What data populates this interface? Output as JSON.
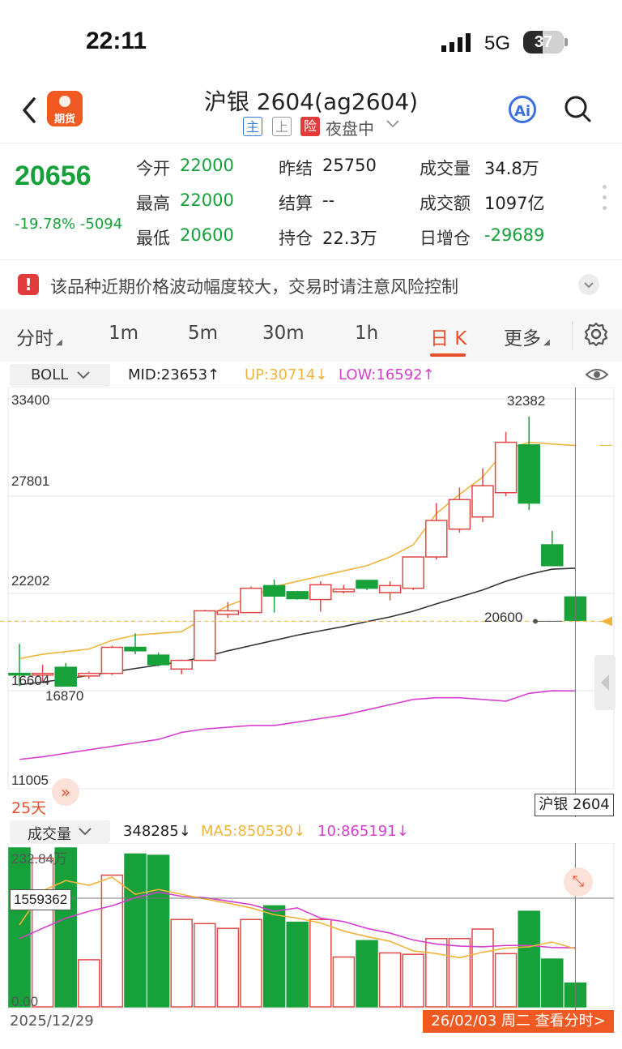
{
  "status_bar": {
    "time": "22:11",
    "network": "5G",
    "battery": "37"
  },
  "header": {
    "back_icon": "chevron-left-icon",
    "logo_label": "期货",
    "title": "沪银 2604(ag2604)",
    "tags": {
      "main": "主",
      "up": "上",
      "risk": "险"
    },
    "session": "夜盘中",
    "ai_label": "Ai"
  },
  "quote": {
    "price": "20656",
    "change_pct": "-19.78%",
    "change_abs": "-5094",
    "fields": [
      {
        "label": "今开",
        "value": "22000",
        "color": "#17a13a"
      },
      {
        "label": "最高",
        "value": "22000",
        "color": "#17a13a"
      },
      {
        "label": "最低",
        "value": "20600",
        "color": "#17a13a"
      },
      {
        "label": "昨结",
        "value": "25750",
        "color": "#222222"
      },
      {
        "label": "结算",
        "value": "--",
        "color": "#222222"
      },
      {
        "label": "持仓",
        "value": "22.3万",
        "color": "#222222"
      },
      {
        "label": "成交量",
        "value": "34.8万",
        "color": "#222222"
      },
      {
        "label": "成交额",
        "value": "1097亿",
        "color": "#222222"
      },
      {
        "label": "日增仓",
        "value": "-29689",
        "color": "#17a13a"
      }
    ]
  },
  "warning": {
    "icon": "!",
    "text": "该品种近期价格波动幅度较大，交易时请注意风险控制"
  },
  "tabs": {
    "fenshi": "分时",
    "m1": "1m",
    "m5": "5m",
    "m30": "30m",
    "h1": "1h",
    "day": "日 K",
    "more": "更多"
  },
  "indicator": {
    "name": "BOLL",
    "mid": "MID:23653↑",
    "up": "UP:30714↓",
    "low": "LOW:16592↑"
  },
  "price_axis": {
    "y1": "33400",
    "y2": "27801",
    "y3": "22202",
    "y4": "16604",
    "y5": "11005"
  },
  "annotations": {
    "high": "32382",
    "low": "16870",
    "last": "20600"
  },
  "period": "25天",
  "symbol_tag": "沪银 2604",
  "volume": {
    "name": "成交量",
    "value": "348285↓",
    "ma5": "MA5:850530↓",
    "ma10": "10:865191↓",
    "axis_top": "232.84万",
    "axis_bottom": "0.00",
    "crosshair_label": "1559362"
  },
  "dates": {
    "start": "2025/12/29",
    "selected": "26/02/03 周二 查看分时>"
  },
  "colors": {
    "up": "#e04848",
    "down": "#17a13a",
    "mid": "#333333",
    "upper": "#f0b43c",
    "lower": "#d63fd0",
    "accent": "#e8502b"
  },
  "chart_data": {
    "type": "candlestick",
    "candles": [
      {
        "o": 17600,
        "c": 17550,
        "h": 19300,
        "l": 16870
      },
      {
        "o": 17500,
        "c": 17600,
        "h": 18100,
        "l": 17100
      },
      {
        "o": 17950,
        "c": 16870,
        "h": 18200,
        "l": 16870
      },
      {
        "o": 17450,
        "c": 17600,
        "h": 17700,
        "l": 17300
      },
      {
        "o": 17600,
        "c": 19100,
        "h": 19200,
        "l": 17500
      },
      {
        "o": 19100,
        "c": 18900,
        "h": 19900,
        "l": 18700
      },
      {
        "o": 18650,
        "c": 18100,
        "h": 18800,
        "l": 18000
      },
      {
        "o": 17850,
        "c": 18350,
        "h": 18400,
        "l": 17550
      },
      {
        "o": 18350,
        "c": 21200,
        "h": 21250,
        "l": 18350
      },
      {
        "o": 21000,
        "c": 21200,
        "h": 21700,
        "l": 20800
      },
      {
        "o": 21100,
        "c": 22500,
        "h": 22600,
        "l": 21100
      },
      {
        "o": 22650,
        "c": 22050,
        "h": 23000,
        "l": 21100
      },
      {
        "o": 22300,
        "c": 21900,
        "h": 22350,
        "l": 21850
      },
      {
        "o": 21850,
        "c": 22700,
        "h": 22900,
        "l": 21150
      },
      {
        "o": 22300,
        "c": 22450,
        "h": 22700,
        "l": 22200
      },
      {
        "o": 22950,
        "c": 22500,
        "h": 22950,
        "l": 22400
      },
      {
        "o": 22250,
        "c": 22650,
        "h": 22900,
        "l": 21800
      },
      {
        "o": 22500,
        "c": 24300,
        "h": 24300,
        "l": 22400
      },
      {
        "o": 24300,
        "c": 26400,
        "h": 27400,
        "l": 24150
      },
      {
        "o": 25900,
        "c": 27600,
        "h": 28300,
        "l": 25700
      },
      {
        "o": 26600,
        "c": 28400,
        "h": 29400,
        "l": 26300
      },
      {
        "o": 28000,
        "c": 30900,
        "h": 31500,
        "l": 27800
      },
      {
        "o": 30750,
        "c": 27400,
        "h": 32382,
        "l": 27000
      },
      {
        "o": 25000,
        "c": 23800,
        "h": 25800,
        "l": 23800
      },
      {
        "o": 22000,
        "c": 20656,
        "h": 22000,
        "l": 20600
      }
    ],
    "boll_mid": [
      16950,
      17100,
      17280,
      17480,
      17680,
      17880,
      18080,
      18280,
      18550,
      18900,
      19200,
      19500,
      19800,
      20050,
      20300,
      20580,
      20850,
      21180,
      21600,
      22000,
      22400,
      22900,
      23300,
      23600,
      23653
    ],
    "boll_up": [
      18450,
      18700,
      18850,
      19000,
      19500,
      19800,
      19900,
      20000,
      20800,
      21500,
      22000,
      22600,
      22900,
      23200,
      23500,
      23800,
      24300,
      25000,
      26800,
      27900,
      28900,
      30500,
      30900,
      30800,
      30714
    ],
    "boll_low": [
      12650,
      12800,
      13000,
      13200,
      13400,
      13600,
      13800,
      14200,
      14400,
      14500,
      14600,
      14600,
      14800,
      15000,
      15200,
      15500,
      15800,
      16100,
      16200,
      16200,
      16100,
      16000,
      16450,
      16600,
      16592
    ],
    "volumes": [
      2328400,
      2180000,
      2328400,
      690000,
      1930000,
      2240000,
      2220000,
      1280000,
      1220000,
      1150000,
      1280000,
      1480000,
      1240000,
      1280000,
      730000,
      970000,
      790000,
      770000,
      1000000,
      1000000,
      1140000,
      780000,
      1400000,
      700000,
      348285
    ],
    "vol_ma5": [
      1200000,
      1700000,
      1850000,
      1780000,
      1900000,
      1650000,
      1720000,
      1650000,
      1580000,
      1520000,
      1450000,
      1350000,
      1300000,
      1230000,
      1110000,
      1030000,
      960000,
      820000,
      780000,
      720000,
      800000,
      860000,
      880000,
      950000,
      850530
    ],
    "vol_ma10": [
      1000000,
      1150000,
      1300000,
      1400000,
      1480000,
      1600000,
      1680000,
      1620000,
      1600000,
      1550000,
      1500000,
      1400000,
      1450000,
      1300000,
      1250000,
      1150000,
      1080000,
      980000,
      920000,
      890000,
      880000,
      900000,
      900000,
      870000,
      865191
    ],
    "ylim": [
      11005,
      33400
    ],
    "vol_ylim": [
      0,
      2328400
    ]
  }
}
